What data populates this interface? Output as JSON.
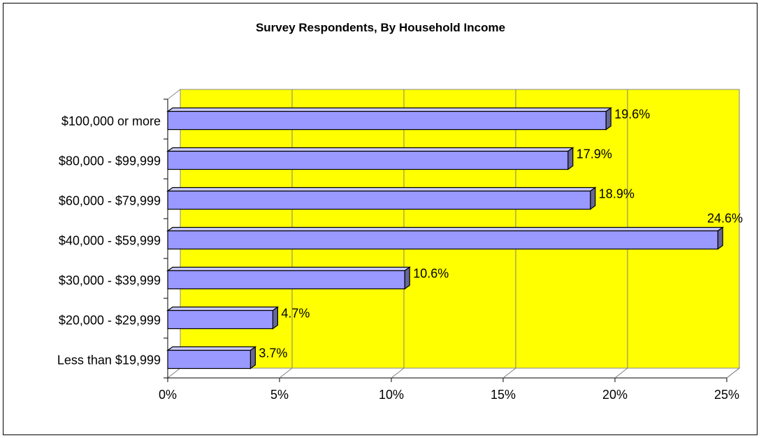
{
  "chart_data": {
    "type": "bar",
    "orientation": "horizontal",
    "title": "Survey Respondents, By Household Income",
    "categories": [
      "$100,000 or more",
      "$80,000 - $99,999",
      "$60,000 - $79,999",
      "$40,000 - $59,999",
      "$30,000 - $39,999",
      "$20,000 - $29,999",
      "Less than $19,999"
    ],
    "values": [
      19.6,
      17.9,
      18.9,
      24.6,
      10.6,
      4.7,
      3.7
    ],
    "data_labels": [
      "19.6%",
      "17.9%",
      "18.9%",
      "24.6%",
      "10.6%",
      "4.7%",
      "3.7%"
    ],
    "xlim": [
      0,
      25
    ],
    "x_ticks": [
      "0%",
      "5%",
      "10%",
      "15%",
      "20%",
      "25%"
    ],
    "xlabel": "",
    "ylabel": "",
    "grid": true,
    "legend": "none",
    "colors": {
      "plot_area": "#ffff00",
      "bar_front": "#9999ff",
      "bar_top": "#ccccff",
      "bar_side": "#666699",
      "outline": "#000000"
    }
  }
}
